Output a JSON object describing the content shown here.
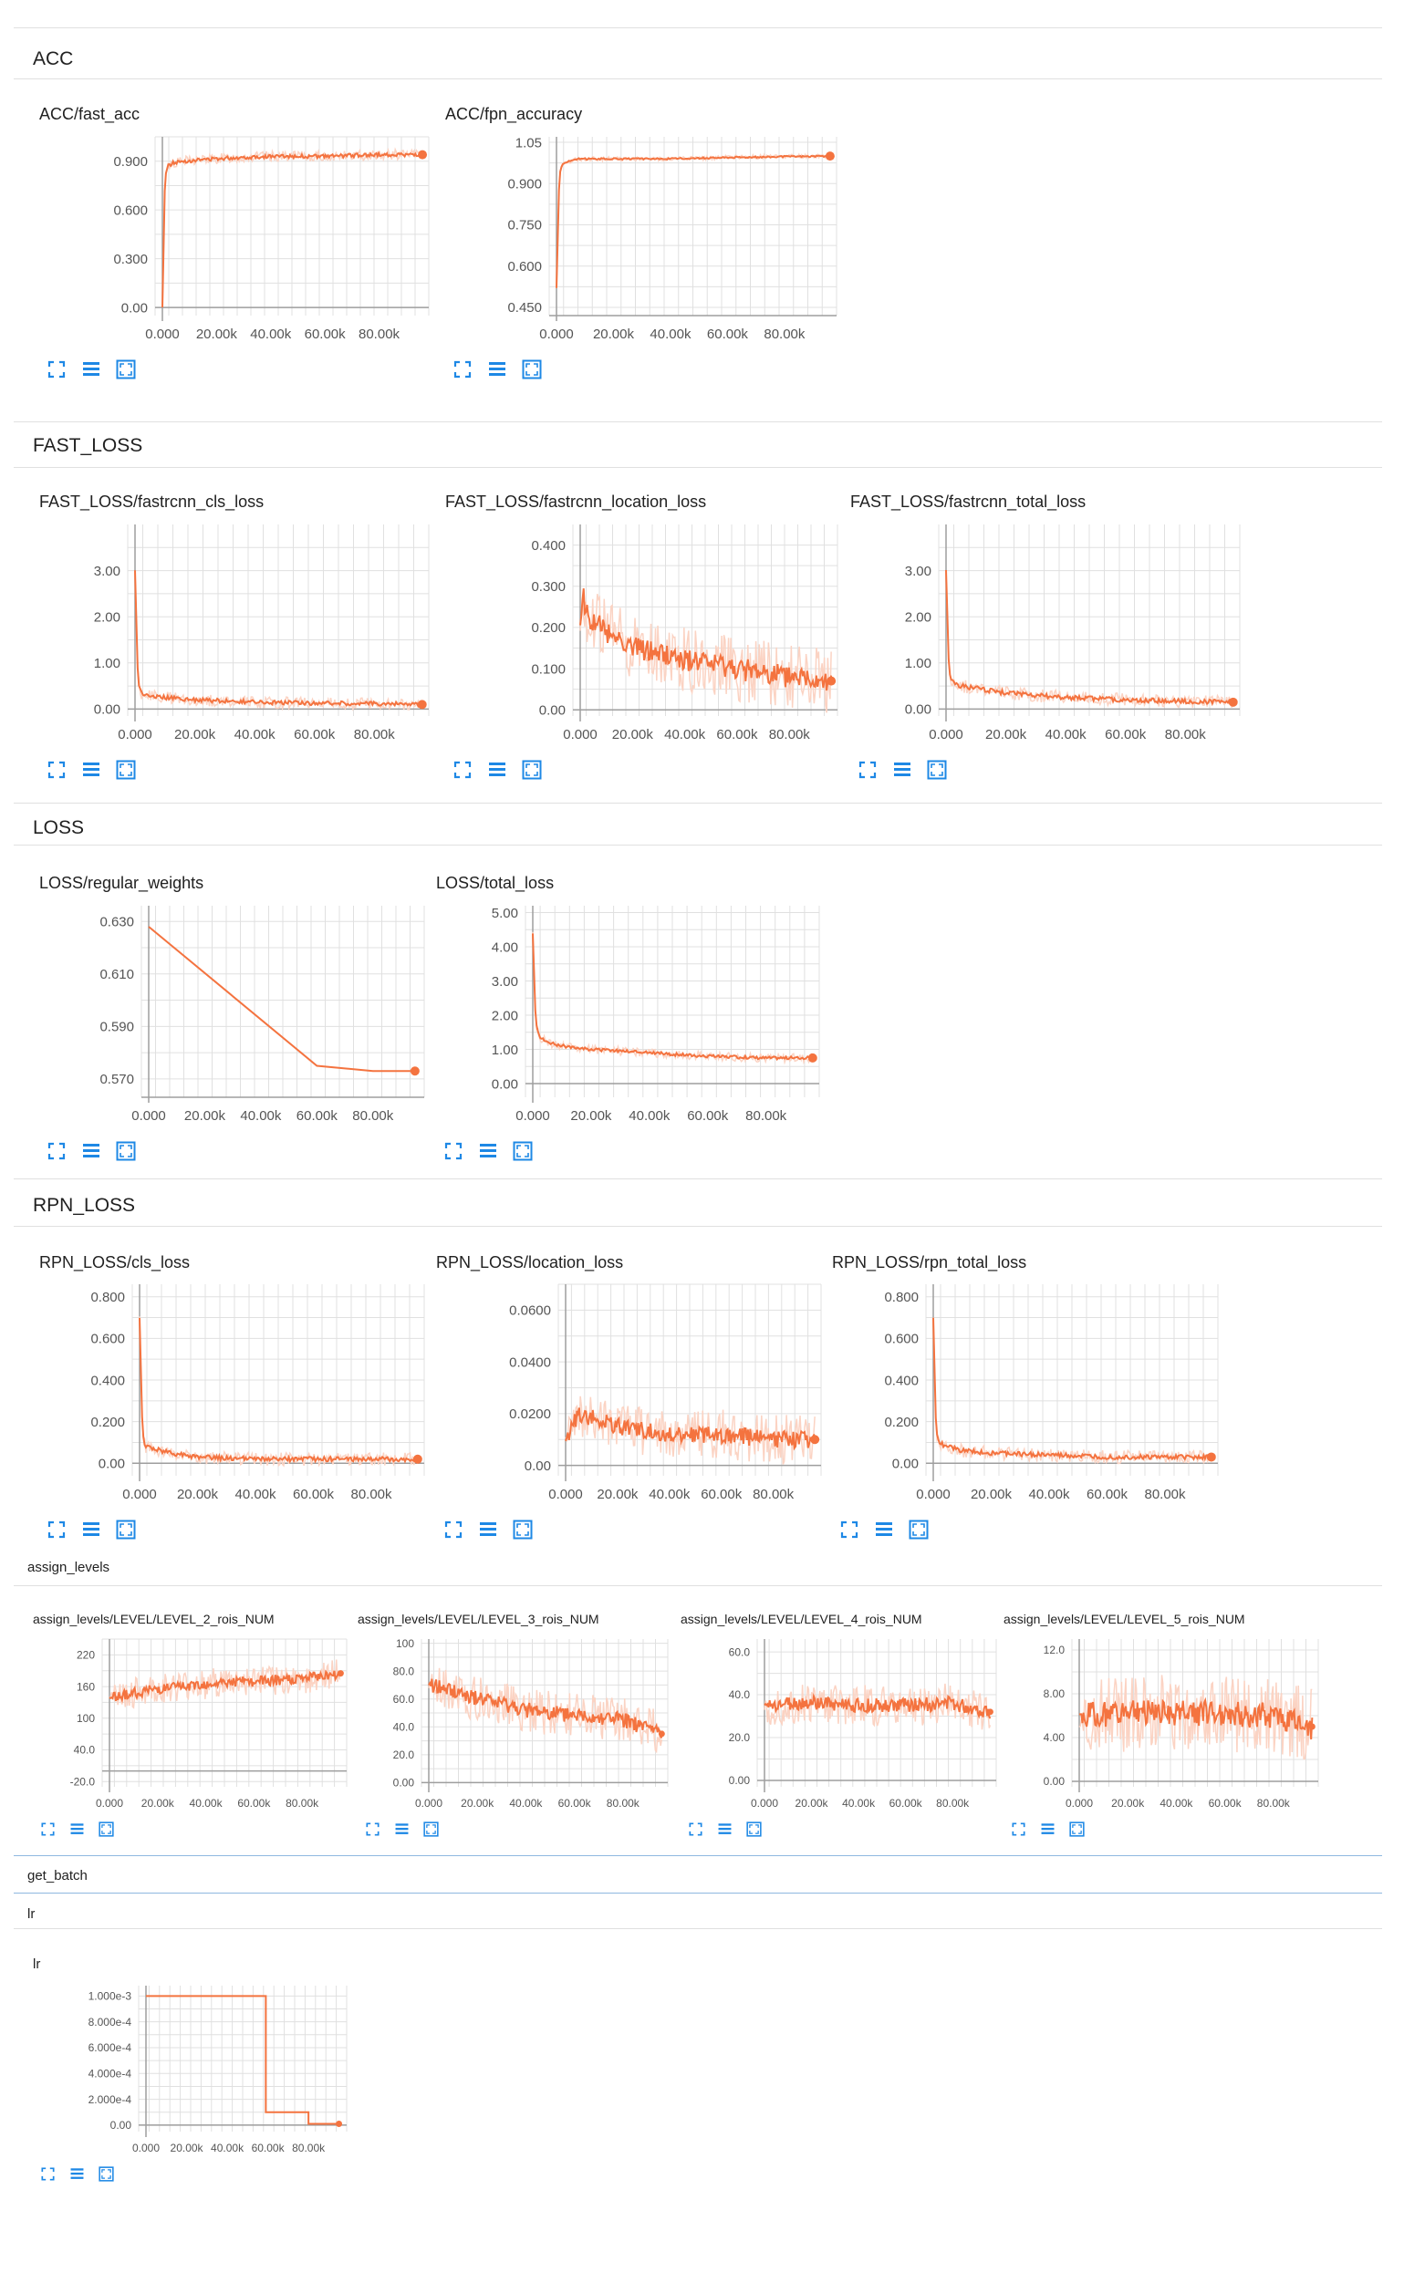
{
  "sections": {
    "acc": {
      "title": "ACC"
    },
    "fast_loss": {
      "title": "FAST_LOSS"
    },
    "loss": {
      "title": "LOSS"
    },
    "rpn_loss": {
      "title": "RPN_LOSS"
    },
    "assign_levels": {
      "title": "assign_levels"
    },
    "get_batch": {
      "title": "get_batch"
    },
    "lr": {
      "title": "lr"
    }
  },
  "icons": [
    "fit-domain-icon",
    "toggle-log-scale-icon",
    "fullscreen-icon"
  ],
  "colors": {
    "series": "#f4733f",
    "smoothed_band": "#fbd3c3",
    "grid": "#e0e0e0",
    "axis": "#9e9e9e"
  },
  "x_tick_labels": [
    "0.000",
    "20.00k",
    "40.00k",
    "60.00k",
    "80.00k"
  ],
  "chart_data": [
    {
      "id": "acc_fast",
      "type": "line",
      "title": "ACC/fast_acc",
      "xlim": [
        0,
        97000
      ],
      "ylim": [
        -0.05,
        1.05
      ],
      "yticks": [
        "0.900",
        "0.600",
        "0.300",
        "0.00"
      ],
      "ytick_values": [
        0.9,
        0.6,
        0.3,
        0
      ],
      "x": [
        0,
        1000,
        2000,
        4000,
        8000,
        15000,
        25000,
        40000,
        60000,
        80000,
        96000
      ],
      "y": [
        0,
        0.82,
        0.87,
        0.89,
        0.9,
        0.91,
        0.92,
        0.93,
        0.93,
        0.94,
        0.94
      ]
    },
    {
      "id": "acc_fpn",
      "type": "line",
      "title": "ACC/fpn_accuracy",
      "xlim": [
        0,
        97000
      ],
      "ylim": [
        0.42,
        1.07
      ],
      "yticks": [
        "1.05",
        "0.900",
        "0.750",
        "0.600",
        "0.450"
      ],
      "ytick_values": [
        1.05,
        0.9,
        0.75,
        0.6,
        0.45
      ],
      "x": [
        0,
        1000,
        2000,
        4000,
        8000,
        20000,
        40000,
        60000,
        80000,
        96000
      ],
      "y": [
        0.52,
        0.93,
        0.97,
        0.98,
        0.99,
        0.99,
        0.99,
        0.995,
        0.998,
        1.0
      ]
    },
    {
      "id": "fast_cls",
      "type": "line",
      "title": "FAST_LOSS/fastrcnn_cls_loss",
      "xlim": [
        0,
        97000
      ],
      "ylim": [
        -0.15,
        4.0
      ],
      "yticks": [
        "3.00",
        "2.00",
        "1.00",
        "0.00"
      ],
      "ytick_values": [
        3,
        2,
        1,
        0
      ],
      "x": [
        0,
        1000,
        2000,
        4000,
        10000,
        20000,
        40000,
        60000,
        80000,
        96000
      ],
      "y": [
        3.0,
        0.6,
        0.35,
        0.3,
        0.25,
        0.2,
        0.15,
        0.13,
        0.12,
        0.1
      ]
    },
    {
      "id": "fast_loc",
      "type": "line",
      "title": "FAST_LOSS/fastrcnn_location_loss",
      "xlim": [
        0,
        97000
      ],
      "ylim": [
        -0.015,
        0.45
      ],
      "yticks": [
        "0.400",
        "0.300",
        "0.200",
        "0.100",
        "0.00"
      ],
      "ytick_values": [
        0.4,
        0.3,
        0.2,
        0.1,
        0
      ],
      "x": [
        0,
        1000,
        3000,
        8000,
        20000,
        40000,
        60000,
        80000,
        96000
      ],
      "y": [
        0.2,
        0.28,
        0.22,
        0.2,
        0.15,
        0.12,
        0.1,
        0.08,
        0.07
      ]
    },
    {
      "id": "fast_total",
      "type": "line",
      "title": "FAST_LOSS/fastrcnn_total_loss",
      "xlim": [
        0,
        97000
      ],
      "ylim": [
        -0.15,
        4.0
      ],
      "yticks": [
        "3.00",
        "2.00",
        "1.00",
        "0.00"
      ],
      "ytick_values": [
        3,
        2,
        1,
        0
      ],
      "x": [
        0,
        1000,
        2000,
        5000,
        10000,
        20000,
        40000,
        60000,
        80000,
        96000
      ],
      "y": [
        3.0,
        0.8,
        0.6,
        0.5,
        0.45,
        0.35,
        0.25,
        0.2,
        0.17,
        0.15
      ]
    },
    {
      "id": "loss_reg",
      "type": "line",
      "title": "LOSS/regular_weights",
      "xlim": [
        0,
        97000
      ],
      "ylim": [
        0.563,
        0.636
      ],
      "yticks": [
        "0.630",
        "0.610",
        "0.590",
        "0.570"
      ],
      "ytick_values": [
        0.63,
        0.61,
        0.59,
        0.57
      ],
      "x": [
        0,
        60000,
        80000,
        95000
      ],
      "y": [
        0.628,
        0.575,
        0.573,
        0.573
      ]
    },
    {
      "id": "loss_total",
      "type": "line",
      "title": "LOSS/total_loss",
      "xlim": [
        0,
        97000
      ],
      "ylim": [
        -0.4,
        5.2
      ],
      "yticks": [
        "5.00",
        "4.00",
        "3.00",
        "2.00",
        "1.00",
        "0.00"
      ],
      "ytick_values": [
        5,
        4,
        3,
        2,
        1,
        0
      ],
      "x": [
        0,
        1000,
        2000,
        5000,
        10000,
        20000,
        40000,
        60000,
        80000,
        96000
      ],
      "y": [
        4.4,
        1.8,
        1.4,
        1.2,
        1.1,
        1.0,
        0.9,
        0.8,
        0.75,
        0.75
      ]
    },
    {
      "id": "rpn_cls",
      "type": "line",
      "title": "RPN_LOSS/cls_loss",
      "xlim": [
        0,
        97000
      ],
      "ylim": [
        -0.06,
        0.86
      ],
      "yticks": [
        "0.800",
        "0.600",
        "0.400",
        "0.200",
        "0.00"
      ],
      "ytick_values": [
        0.8,
        0.6,
        0.4,
        0.2,
        0
      ],
      "x": [
        0,
        1000,
        2000,
        5000,
        10000,
        20000,
        40000,
        60000,
        80000,
        96000
      ],
      "y": [
        0.7,
        0.15,
        0.08,
        0.07,
        0.05,
        0.03,
        0.02,
        0.02,
        0.02,
        0.02
      ]
    },
    {
      "id": "rpn_loc",
      "type": "line",
      "title": "RPN_LOSS/location_loss",
      "xlim": [
        0,
        97000
      ],
      "ylim": [
        -0.004,
        0.07
      ],
      "yticks": [
        "0.0600",
        "0.0400",
        "0.0200",
        "0.00"
      ],
      "ytick_values": [
        0.06,
        0.04,
        0.02,
        0
      ],
      "x": [
        0,
        5000,
        20000,
        40000,
        60000,
        80000,
        96000
      ],
      "y": [
        0.01,
        0.02,
        0.015,
        0.012,
        0.012,
        0.01,
        0.01
      ]
    },
    {
      "id": "rpn_total",
      "type": "line",
      "title": "RPN_LOSS/rpn_total_loss",
      "xlim": [
        0,
        97000
      ],
      "ylim": [
        -0.06,
        0.86
      ],
      "yticks": [
        "0.800",
        "0.600",
        "0.400",
        "0.200",
        "0.00"
      ],
      "ytick_values": [
        0.8,
        0.6,
        0.4,
        0.2,
        0
      ],
      "x": [
        0,
        1000,
        2000,
        5000,
        10000,
        20000,
        40000,
        60000,
        80000,
        96000
      ],
      "y": [
        0.7,
        0.15,
        0.1,
        0.08,
        0.06,
        0.05,
        0.04,
        0.03,
        0.03,
        0.03
      ]
    },
    {
      "id": "lvl2",
      "type": "line",
      "title": "assign_levels/LEVEL/LEVEL_2_rois_NUM",
      "xlim": [
        0,
        97000
      ],
      "ylim": [
        -30,
        250
      ],
      "yticks": [
        "220",
        "160",
        "100",
        "40.0",
        "-20.0"
      ],
      "ytick_values": [
        220,
        160,
        100,
        40,
        -20
      ],
      "x": [
        0,
        20000,
        40000,
        60000,
        80000,
        96000
      ],
      "y": [
        140,
        155,
        165,
        170,
        175,
        185
      ]
    },
    {
      "id": "lvl3",
      "type": "line",
      "title": "assign_levels/LEVEL/LEVEL_3_rois_NUM",
      "xlim": [
        0,
        97000
      ],
      "ylim": [
        -3,
        103
      ],
      "yticks": [
        "100",
        "80.0",
        "60.0",
        "40.0",
        "20.0",
        "0.00"
      ],
      "ytick_values": [
        100,
        80,
        60,
        40,
        20,
        0
      ],
      "x": [
        0,
        10000,
        20000,
        40000,
        60000,
        80000,
        96000
      ],
      "y": [
        70,
        65,
        60,
        52,
        48,
        45,
        35
      ]
    },
    {
      "id": "lvl4",
      "type": "line",
      "title": "assign_levels/LEVEL/LEVEL_4_rois_NUM",
      "xlim": [
        0,
        97000
      ],
      "ylim": [
        -3,
        66
      ],
      "yticks": [
        "60.0",
        "40.0",
        "20.0",
        "0.00"
      ],
      "ytick_values": [
        60,
        40,
        20,
        0
      ],
      "x": [
        0,
        20000,
        40000,
        60000,
        80000,
        96000
      ],
      "y": [
        35,
        36,
        35,
        35,
        36,
        32
      ]
    },
    {
      "id": "lvl5",
      "type": "line",
      "title": "assign_levels/LEVEL/LEVEL_5_rois_NUM",
      "xlim": [
        0,
        97000
      ],
      "ylim": [
        -0.5,
        13
      ],
      "yticks": [
        "12.0",
        "8.00",
        "4.00",
        "0.00"
      ],
      "ytick_values": [
        12,
        8,
        4,
        0
      ],
      "x": [
        0,
        20000,
        40000,
        60000,
        80000,
        96000
      ],
      "y": [
        6,
        6.2,
        6.3,
        6.2,
        6.0,
        5.0
      ]
    },
    {
      "id": "lr",
      "type": "line",
      "title": "lr",
      "xlim": [
        0,
        97000
      ],
      "ylim": [
        -5e-05,
        0.00108
      ],
      "yticks": [
        "1.000e-3",
        "8.000e-4",
        "6.000e-4",
        "4.000e-4",
        "2.000e-4",
        "0.00"
      ],
      "ytick_values": [
        0.001,
        0.0008,
        0.0006,
        0.0004,
        0.0002,
        0
      ],
      "x": [
        0,
        59000,
        59000,
        62000,
        62000,
        80000,
        80000,
        95000
      ],
      "y": [
        0.001,
        0.001,
        0.0001,
        0.0001,
        0.0001,
        0.0001,
        1e-05,
        1e-05
      ]
    }
  ]
}
